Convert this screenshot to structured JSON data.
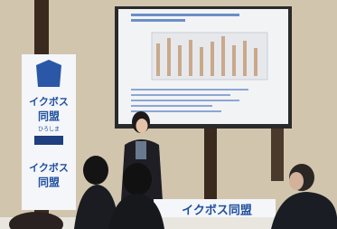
{
  "banner": {
    "line1": "イクボス",
    "line2": "同盟",
    "line3": "ひろしま",
    "line4": "イクボス",
    "line5": "同盟"
  },
  "table_banner": "イクボス同盟"
}
